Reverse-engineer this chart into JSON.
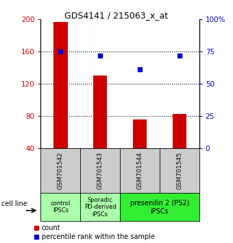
{
  "title": "GDS4141 / 215063_x_at",
  "samples": [
    "GSM701542",
    "GSM701543",
    "GSM701544",
    "GSM701545"
  ],
  "bar_values": [
    197,
    130,
    76,
    83
  ],
  "percentile_values": [
    160,
    155,
    138,
    155
  ],
  "ylim_left": [
    40,
    200
  ],
  "ylim_right": [
    0,
    100
  ],
  "yticks_left": [
    40,
    80,
    120,
    160,
    200
  ],
  "yticks_right": [
    0,
    25,
    50,
    75,
    100
  ],
  "ytick_labels_right": [
    "0",
    "25",
    "50",
    "75",
    "100%"
  ],
  "bar_color": "#cc0000",
  "percentile_color": "#0000cc",
  "bar_width": 0.35,
  "group_defs": [
    {
      "label": "control\nIPSCs",
      "cols": [
        0
      ],
      "color": "#aaffaa"
    },
    {
      "label": "Sporadic\nPD-derived\niPSCs",
      "cols": [
        1
      ],
      "color": "#aaffaa"
    },
    {
      "label": "presenilin 2 (PS2)\niPSCs",
      "cols": [
        2,
        3
      ],
      "color": "#33ee33"
    }
  ],
  "cell_line_label": "cell line",
  "legend_count_label": "count",
  "legend_percentile_label": "percentile rank within the sample",
  "tick_label_color_left": "#cc0000",
  "tick_label_color_right": "#0000cc",
  "sample_box_color": "#cccccc"
}
